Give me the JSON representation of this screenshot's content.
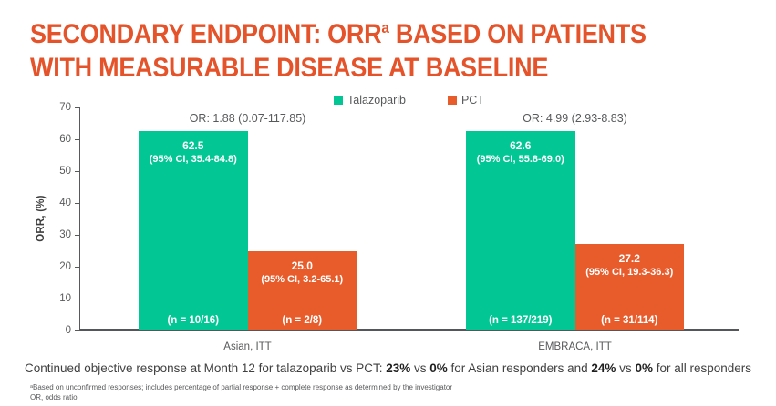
{
  "title": {
    "line1_pre": "SECONDARY ENDPOINT: ORR",
    "line1_sup": "a",
    "line1_post": " BASED ON PATIENTS",
    "line2": "WITH MEASURABLE DISEASE AT BASELINE"
  },
  "colors": {
    "title": "#E4532A",
    "talazoparib": "#02C795",
    "pct": "#E85C2C",
    "axis": "#53565A",
    "gray_text": "#58595B"
  },
  "chart_data": {
    "type": "bar",
    "title": "",
    "xlabel": "",
    "ylabel": "ORR, (%)",
    "ylim": [
      0,
      70
    ],
    "yticks": [
      0,
      10,
      20,
      30,
      40,
      50,
      60,
      70
    ],
    "grid": false,
    "legend_position": "top-center",
    "legend": [
      "Talazoparib",
      "PCT"
    ],
    "categories": [
      "Asian, ITT",
      "EMBRACA, ITT"
    ],
    "series": [
      {
        "name": "Talazoparib",
        "values": [
          62.5,
          62.6
        ],
        "value_labels": [
          "62.5",
          "62.6"
        ],
        "ci_labels": [
          "(95% CI, 35.4-84.8)",
          "(95% CI, 55.8-69.0)"
        ],
        "n_labels": [
          "(n = 10/16)",
          "(n = 137/219)"
        ]
      },
      {
        "name": "PCT",
        "values": [
          25.0,
          27.2
        ],
        "value_labels": [
          "25.0",
          "27.2"
        ],
        "ci_labels": [
          "(95% CI, 3.2-65.1)",
          "(95% CI, 19.3-36.3)"
        ],
        "n_labels": [
          "(n = 2/8)",
          "(n = 31/114)"
        ]
      }
    ],
    "or_labels": [
      "OR: 1.88 (0.07-117.85)",
      "OR: 4.99 (2.93-8.83)"
    ]
  },
  "footer_segments": [
    {
      "text": "Continued objective response at Month 12 for talazoparib vs PCT: ",
      "bold": false
    },
    {
      "text": "23%",
      "bold": true
    },
    {
      "text": " vs ",
      "bold": false
    },
    {
      "text": "0%",
      "bold": true
    },
    {
      "text": " for Asian responders and ",
      "bold": false
    },
    {
      "text": "24%",
      "bold": true
    },
    {
      "text": " vs ",
      "bold": false
    },
    {
      "text": "0%",
      "bold": true
    },
    {
      "text": " for all responders",
      "bold": false
    }
  ],
  "footnotes": [
    "ᵃBased on unconfirmed responses; includes percentage of partial response + complete response as determined by the investigator",
    "OR, odds ratio"
  ]
}
